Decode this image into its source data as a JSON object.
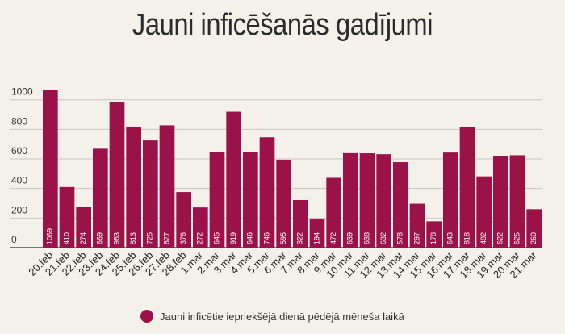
{
  "title": "Jauni inficēšanās gadījumi",
  "colors": {
    "bar": "#9b1248",
    "background": "#f4f1ea",
    "grid": "#c9c6bf"
  },
  "legend": {
    "label": "Jauni inficētie iepriekšējā dienā pēdējā mēneša laikā"
  },
  "chart_data": {
    "type": "bar",
    "title": "Jauni inficēšanās gadījumi",
    "xlabel": "",
    "ylabel": "",
    "ylim": [
      0,
      1100
    ],
    "yticks": [
      0,
      200,
      400,
      600,
      800,
      1000
    ],
    "grid": true,
    "legend_position": "bottom",
    "categories": [
      "20.feb",
      "21.feb",
      "22.feb",
      "23.feb",
      "24.feb",
      "25.feb",
      "26.feb",
      "27.feb",
      "28.feb",
      "1.mar",
      "2.mar",
      "3.mar",
      "4.mar",
      "5.mar",
      "6.mar",
      "7.mar",
      "8.mar",
      "9.mar",
      "10.mar",
      "11.mar",
      "12.mar",
      "13.mar",
      "14.mar",
      "15.mar",
      "16.mar",
      "17.mar",
      "18.mar",
      "19.mar",
      "20.mar",
      "21.mar"
    ],
    "series": [
      {
        "name": "Jauni inficētie iepriekšējā dienā pēdējā mēneša laikā",
        "values": [
          1069,
          410,
          274,
          669,
          983,
          813,
          725,
          827,
          376,
          272,
          645,
          919,
          646,
          746,
          595,
          322,
          194,
          472,
          639,
          638,
          632,
          578,
          297,
          178,
          643,
          818,
          482,
          622,
          625,
          260
        ]
      }
    ]
  }
}
